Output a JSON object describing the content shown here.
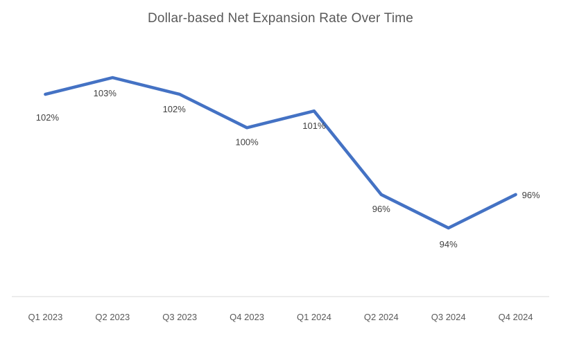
{
  "chart_data": {
    "type": "line",
    "title": "Dollar-based Net Expansion Rate Over Time",
    "categories": [
      "Q1 2023",
      "Q2 2023",
      "Q3 2023",
      "Q4 2023",
      "Q1 2024",
      "Q2 2024",
      "Q3 2024",
      "Q4 2024"
    ],
    "series": [
      {
        "name": "Dollar-based Net Expansion Rate",
        "values": [
          102,
          103,
          102,
          100,
          101,
          96,
          94,
          96
        ],
        "data_labels": [
          "102%",
          "103%",
          "102%",
          "100%",
          "101%",
          "96%",
          "94%",
          "96%"
        ]
      }
    ],
    "unit": "%",
    "xlabel": "",
    "ylabel": "",
    "ylim": [
      94,
      103
    ],
    "grid": false,
    "legend_position": "none",
    "y_axis_visible": false,
    "x_axis_line_visible": true,
    "colors": {
      "line": "#4472C4",
      "title": "#595959",
      "axis_labels": "#595959",
      "data_labels": "#404040",
      "axis_line": "#D9D9D9",
      "background": "#FFFFFF"
    }
  }
}
